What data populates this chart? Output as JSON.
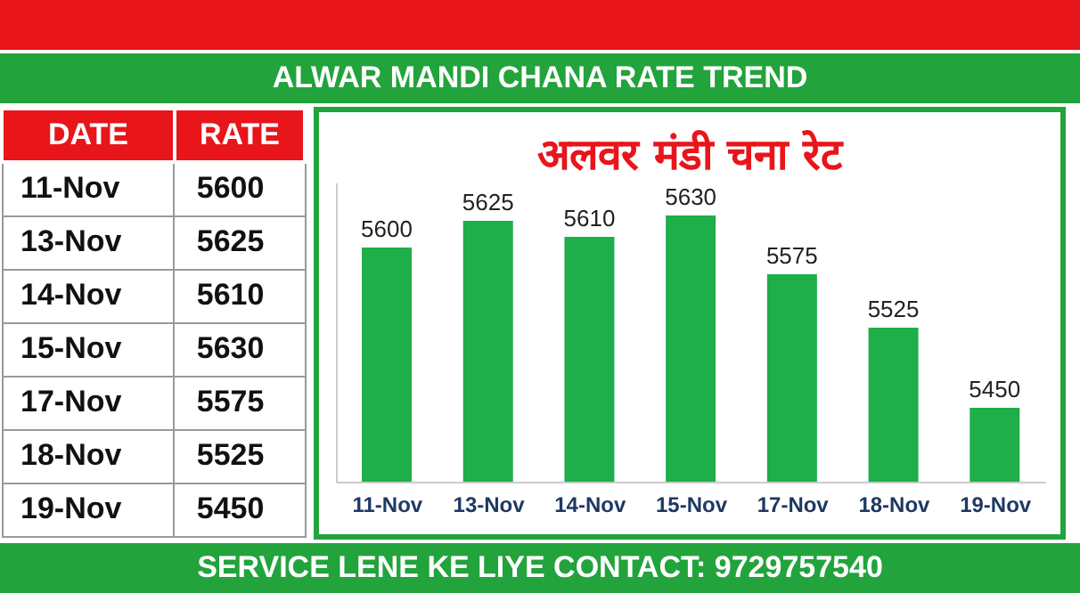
{
  "chart_data": [
    {
      "type": "other",
      "categories": [
        "11-Nov",
        "13-Nov",
        "14-Nov",
        "15-Nov",
        "17-Nov",
        "18-Nov",
        "19-Nov"
      ],
      "values": [
        5600,
        5625,
        5610,
        5630,
        5575,
        5525,
        5450
      ],
      "data_labels": true,
      "annotations": [
        "DATE",
        "RATE"
      ]
    },
    {
      "type": "bar",
      "title": "ALWAR MANDI CHANA RATE TREND",
      "subtitle": "अलवर मंडी चना रेट",
      "categories": [
        "11-Nov",
        "13-Nov",
        "14-Nov",
        "15-Nov",
        "17-Nov",
        "18-Nov",
        "19-Nov"
      ],
      "values": [
        5600,
        5625,
        5610,
        5630,
        5575,
        5525,
        5450
      ],
      "color": "#1eae4a",
      "ylim": [
        5380,
        5660
      ],
      "tick_labels": "x",
      "data_labels": true,
      "grid": false,
      "legend": false,
      "annotations": [
        "SERVICE LENE KE LIYE CONTACT: 9729757540"
      ]
    }
  ]
}
